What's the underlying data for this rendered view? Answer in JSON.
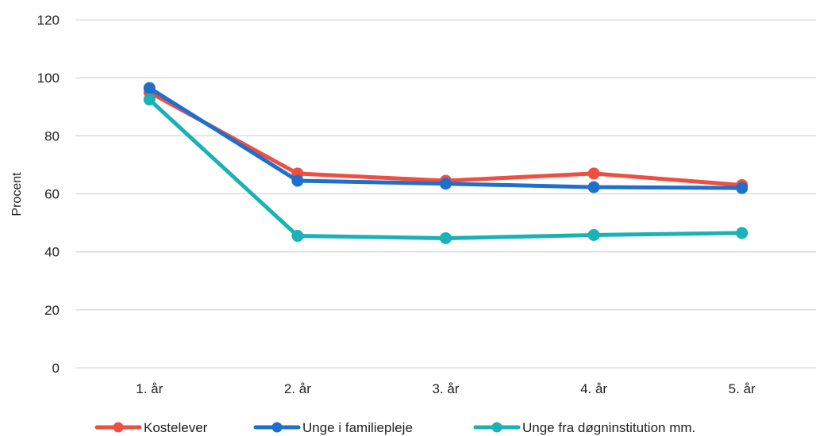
{
  "chart_data": {
    "type": "line",
    "title": "",
    "xlabel": "",
    "ylabel": "Procent",
    "categories": [
      "1. år",
      "2. år",
      "3. år",
      "4. år",
      "5. år"
    ],
    "ylim": [
      0,
      120
    ],
    "yticks": [
      "0",
      "20",
      "40",
      "60",
      "80",
      "100",
      "120"
    ],
    "grid": true,
    "legend_position": "bottom",
    "series": [
      {
        "name": "Kostelever",
        "color": "#f04e41",
        "values": [
          95,
          67,
          64.5,
          67,
          63
        ]
      },
      {
        "name": "Unge i familiepleje",
        "color": "#1f6fcc",
        "values": [
          96.5,
          64.5,
          63.5,
          62.3,
          62
        ]
      },
      {
        "name": "Unge fra døgninstitution mm.",
        "color": "#18b2b7",
        "values": [
          92.5,
          45.5,
          44.7,
          45.8,
          46.5
        ]
      }
    ]
  }
}
